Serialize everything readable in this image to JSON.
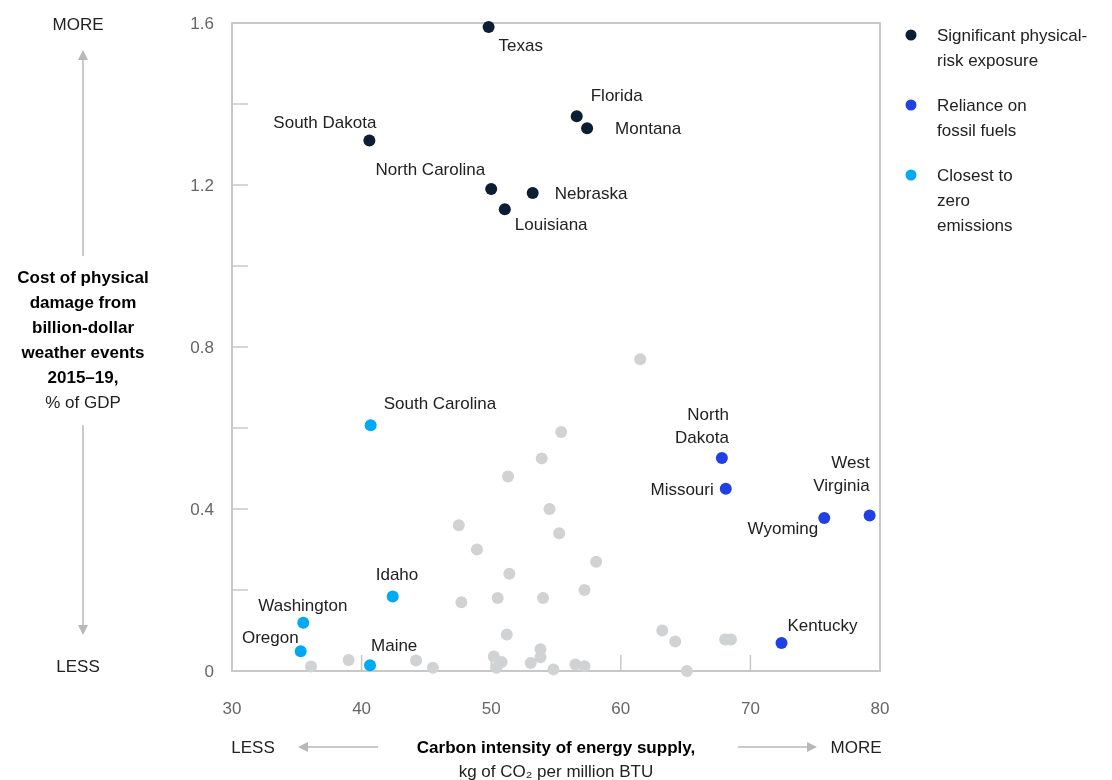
{
  "chart_data": {
    "type": "scatter",
    "xlabel": "Carbon intensity of energy supply, kg of CO₂ per million BTU",
    "ylabel": "Cost of physical damage from billion-dollar weather events 2015–19, % of GDP",
    "xlim": [
      30,
      80
    ],
    "xticks": [
      30,
      40,
      50,
      60,
      70,
      80
    ],
    "ylim": [
      0,
      1.6
    ],
    "yticks": [
      0,
      {
        "value": 0.2,
        "label": null
      },
      0.4,
      {
        "value": 0.6,
        "label": null
      },
      0.8,
      {
        "value": 1.0,
        "label": null
      },
      1.2,
      {
        "value": 1.4,
        "label": null
      },
      1.6
    ],
    "grid": false,
    "legend": "top right",
    "marker": "circle",
    "series": [
      {
        "color": "#d0d2d3",
        "x": [
          61.5,
          55.4,
          53.9,
          51.3,
          54.5,
          47.5,
          55.25,
          48.9,
          58.1,
          51.4,
          57.2,
          50.5,
          54.0,
          47.7,
          63.2,
          51.2,
          53.8,
          53.8,
          50.2,
          50.8,
          50.4,
          53.05,
          54.8,
          56.5,
          57.2,
          36.1,
          39.0,
          44.2,
          45.5,
          64.2,
          68.05,
          68.5,
          65.1
        ],
        "values": [
          0.77,
          0.59,
          0.525,
          0.48,
          0.4,
          0.36,
          0.34,
          0.3,
          0.27,
          0.24,
          0.2,
          0.18,
          0.18,
          0.17,
          0.1,
          0.09,
          0.054,
          0.034,
          0.036,
          0.022,
          0.008,
          0.02,
          0.004,
          0.016,
          0.012,
          0.011,
          0.027,
          0.026,
          0.008,
          0.073,
          0.078,
          0.078,
          0.0
        ]
      },
      {
        "name": "Significant physical-risk exposure",
        "color": "#0b1e33",
        "x": [
          49.8,
          56.6,
          57.4,
          40.6,
          50.0,
          53.2,
          51.05
        ],
        "values": [
          1.59,
          1.37,
          1.34,
          1.31,
          1.19,
          1.18,
          1.14
        ]
      },
      {
        "name": "Reliance on fossil fuels",
        "color": "#2140e3",
        "x": [
          67.8,
          68.1,
          75.7,
          79.2,
          72.4
        ],
        "values": [
          0.526,
          0.45,
          0.378,
          0.384,
          0.069
        ]
      },
      {
        "name": "Closest to zero emissions",
        "color": "#00a9f4",
        "x": [
          40.7,
          42.4,
          35.5,
          35.3,
          40.65
        ],
        "values": [
          0.607,
          0.184,
          0.119,
          0.049,
          0.014
        ]
      }
    ],
    "annotations": [
      {
        "text": "Texas",
        "x": 49.8,
        "y": 1.59
      },
      {
        "text": "Florida",
        "x": 56.6,
        "y": 1.37
      },
      {
        "text": "Montana",
        "x": 57.4,
        "y": 1.34
      },
      {
        "text": "South Dakota",
        "x": 40.6,
        "y": 1.31
      },
      {
        "text": "North Carolina",
        "x": 50.0,
        "y": 1.19
      },
      {
        "text": "Nebraska",
        "x": 53.2,
        "y": 1.18
      },
      {
        "text": "Louisiana",
        "x": 51.05,
        "y": 1.14
      },
      {
        "text": "North Dakota",
        "x": 67.8,
        "y": 0.526
      },
      {
        "text": "Missouri",
        "x": 68.1,
        "y": 0.45
      },
      {
        "text": "Wyoming",
        "x": 75.7,
        "y": 0.378
      },
      {
        "text": "West Virginia",
        "x": 79.2,
        "y": 0.384
      },
      {
        "text": "Kentucky",
        "x": 72.4,
        "y": 0.069
      },
      {
        "text": "South Carolina",
        "x": 40.7,
        "y": 0.607
      },
      {
        "text": "Idaho",
        "x": 42.4,
        "y": 0.184
      },
      {
        "text": "Washington",
        "x": 35.5,
        "y": 0.119
      },
      {
        "text": "Oregon",
        "x": 35.3,
        "y": 0.049
      },
      {
        "text": "Maine",
        "x": 40.65,
        "y": 0.014
      },
      "MORE",
      "LESS",
      "LESS",
      "MORE"
    ]
  }
}
